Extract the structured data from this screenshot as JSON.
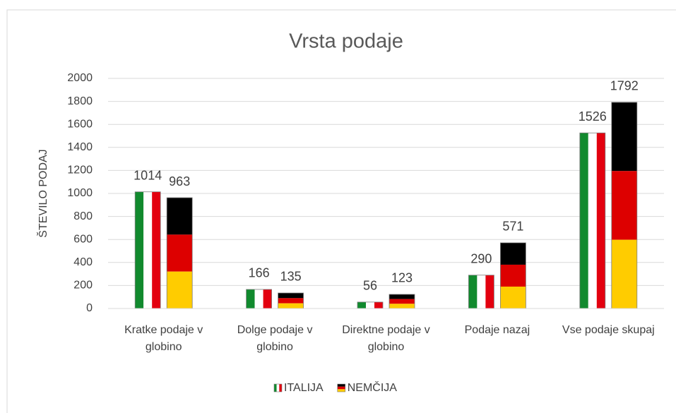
{
  "chart_data": {
    "type": "bar",
    "title": "Vrsta podaje",
    "y_label": "ŠTEVILO PODAJ",
    "categories": [
      "Kratke podaje v globino",
      "Dolge podaje v globino",
      "Direktne podaje v globino",
      "Podaje nazaj",
      "Vse podaje skupaj"
    ],
    "series": [
      {
        "name": "ITALIJA",
        "pattern": "vertical",
        "colors": [
          "#118a2e",
          "#ffffff",
          "#e3000f"
        ],
        "values": [
          1014,
          166,
          56,
          290,
          1526
        ]
      },
      {
        "name": "NEMČIJA",
        "pattern": "horizontal",
        "colors": [
          "#000000",
          "#dd0000",
          "#ffcc00"
        ],
        "values": [
          963,
          135,
          123,
          571,
          1792
        ]
      }
    ],
    "ylim": [
      0,
      2000
    ],
    "yticks": [
      0,
      200,
      400,
      600,
      800,
      1000,
      1200,
      1400,
      1600,
      1800,
      2000
    ],
    "grid": true,
    "legend": "bottom"
  }
}
